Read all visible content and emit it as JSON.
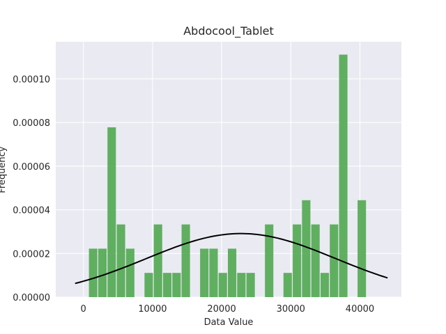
{
  "chart_data": {
    "type": "bar",
    "title": "Abdocool_Tablet",
    "xlabel": "Data Value",
    "ylabel": "Frequency",
    "xlim": [
      -4000,
      46000
    ],
    "ylim": [
      0,
      0.000117
    ],
    "x_ticks": [
      0,
      10000,
      20000,
      30000,
      40000
    ],
    "x_tick_labels": [
      "0",
      "10000",
      "20000",
      "30000",
      "40000"
    ],
    "y_ticks": [
      0,
      2e-05,
      4e-05,
      6e-05,
      8e-05,
      0.0001
    ],
    "y_tick_labels": [
      "0.00000",
      "0.00002",
      "0.00004",
      "0.00006",
      "0.00008",
      "0.00010"
    ],
    "grid": true,
    "bin_width": 1340,
    "bins": [
      {
        "x0": 800,
        "value": 2.22e-05
      },
      {
        "x0": 2140,
        "value": 2.22e-05
      },
      {
        "x0": 3480,
        "value": 7.78e-05
      },
      {
        "x0": 4820,
        "value": 3.33e-05
      },
      {
        "x0": 6160,
        "value": 2.22e-05
      },
      {
        "x0": 7500,
        "value": 0
      },
      {
        "x0": 8840,
        "value": 1.11e-05
      },
      {
        "x0": 10180,
        "value": 3.33e-05
      },
      {
        "x0": 11520,
        "value": 1.11e-05
      },
      {
        "x0": 12860,
        "value": 1.11e-05
      },
      {
        "x0": 14200,
        "value": 3.33e-05
      },
      {
        "x0": 15540,
        "value": 0
      },
      {
        "x0": 16880,
        "value": 2.22e-05
      },
      {
        "x0": 18220,
        "value": 2.22e-05
      },
      {
        "x0": 19560,
        "value": 1.11e-05
      },
      {
        "x0": 20900,
        "value": 2.22e-05
      },
      {
        "x0": 22240,
        "value": 1.11e-05
      },
      {
        "x0": 23580,
        "value": 1.11e-05
      },
      {
        "x0": 24920,
        "value": 0
      },
      {
        "x0": 26260,
        "value": 3.33e-05
      },
      {
        "x0": 27600,
        "value": 0
      },
      {
        "x0": 28940,
        "value": 1.11e-05
      },
      {
        "x0": 30280,
        "value": 3.33e-05
      },
      {
        "x0": 31620,
        "value": 4.44e-05
      },
      {
        "x0": 32960,
        "value": 3.33e-05
      },
      {
        "x0": 34300,
        "value": 1.11e-05
      },
      {
        "x0": 35640,
        "value": 3.33e-05
      },
      {
        "x0": 36980,
        "value": 0.0001111
      },
      {
        "x0": 38320,
        "value": 0
      },
      {
        "x0": 39660,
        "value": 4.44e-05
      }
    ],
    "curve": {
      "type": "normal-pdf",
      "mean": 22800,
      "std": 13700,
      "x_range": [
        -1200,
        44000
      ],
      "color": "#000000"
    },
    "bar_color": "#4ca64c",
    "background_color": "#eaeaf2",
    "grid_color": "#ffffff"
  }
}
